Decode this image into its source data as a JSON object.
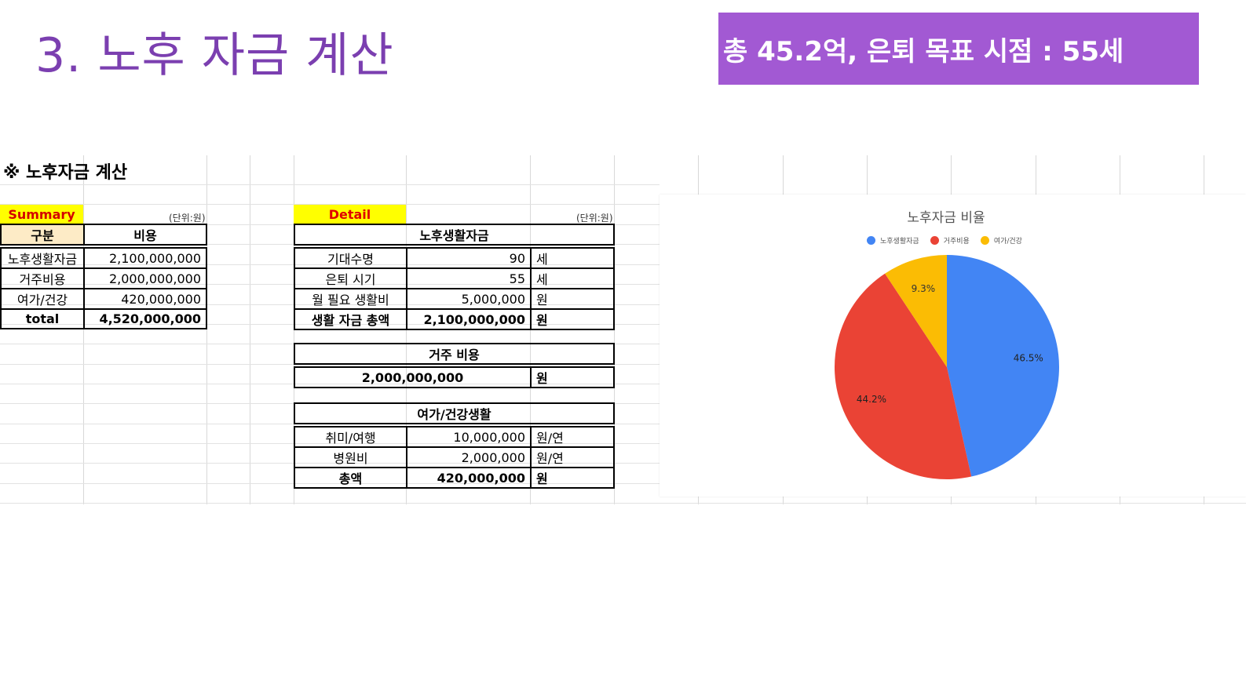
{
  "slide": {
    "title": "3. 노후 자금 계산",
    "banner": "총 45.2억, 은퇴 목표 시점  : 55세"
  },
  "sheet": {
    "title": "※ 노후자금 계산",
    "summary": {
      "tag": "Summary",
      "unit": "(단위:원)",
      "headers": [
        "구분",
        "비용"
      ],
      "rows": [
        {
          "label": "노후생활자금",
          "value": "2,100,000,000"
        },
        {
          "label": "거주비용",
          "value": "2,000,000,000"
        },
        {
          "label": "여가/건강",
          "value": "420,000,000"
        }
      ],
      "total": {
        "label": "total",
        "value": "4,520,000,000"
      }
    },
    "detail": {
      "tag": "Detail",
      "unit": "(단위:원)",
      "living": {
        "header": "노후생활자금",
        "rows": [
          {
            "label": "기대수명",
            "value": "90",
            "unit": "세"
          },
          {
            "label": "은퇴 시기",
            "value": "55",
            "unit": "세"
          },
          {
            "label": "월 필요 생활비",
            "value": "5,000,000",
            "unit": "원"
          }
        ],
        "total": {
          "label": "생활 자금 총액",
          "value": "2,100,000,000",
          "unit": "원"
        }
      },
      "housing": {
        "header": "거주 비용",
        "value": "2,000,000,000",
        "unit": "원"
      },
      "leisure": {
        "header": "여가/건강생활",
        "rows": [
          {
            "label": "취미/여행",
            "value": "10,000,000",
            "unit": "원/연"
          },
          {
            "label": "병원비",
            "value": "2,000,000",
            "unit": "원/연"
          }
        ],
        "total": {
          "label": "총액",
          "value": "420,000,000",
          "unit": "원"
        }
      }
    }
  },
  "chart_data": {
    "type": "pie",
    "title": "노후자금 비율",
    "legend_position": "top",
    "categories": [
      "노후생활자금",
      "거주비용",
      "여가/건강"
    ],
    "values": [
      46.5,
      44.2,
      9.3
    ],
    "labels": [
      "46.5%",
      "44.2%",
      "9.3%"
    ],
    "colors": [
      "#4285f4",
      "#ea4335",
      "#fbbc04"
    ]
  }
}
